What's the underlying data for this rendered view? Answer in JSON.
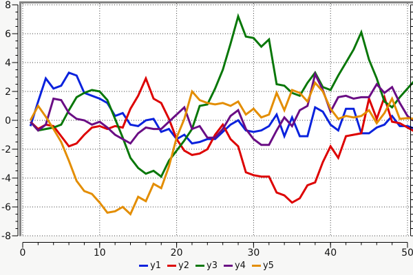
{
  "chart_data": {
    "type": "line",
    "title": "",
    "xlabel": "",
    "ylabel": "",
    "xlim": [
      0,
      50.7
    ],
    "ylim": [
      -8,
      8
    ],
    "grid": "dotted",
    "legend_position": "bottom-center",
    "x_ticks_major": [
      0,
      10,
      20,
      30,
      40,
      50
    ],
    "x_tick_labels": [
      "0",
      "10",
      "20",
      "30",
      "40",
      "50"
    ],
    "x_minor_step": 2,
    "y_ticks_major": [
      8,
      6,
      4,
      2,
      0,
      -2,
      -4,
      -6,
      -8
    ],
    "y_tick_labels": [
      "8",
      "6",
      "4",
      "2",
      "0",
      "-2",
      "-4",
      "-6",
      "-8"
    ],
    "y_minor_step": 0.5,
    "x": [
      1,
      2,
      3,
      4,
      5,
      6,
      7,
      8,
      9,
      10,
      11,
      12,
      13,
      14,
      15,
      16,
      17,
      18,
      19,
      20,
      21,
      22,
      23,
      24,
      25,
      26,
      27,
      28,
      29,
      30,
      31,
      32,
      33,
      34,
      35,
      36,
      37,
      38,
      39,
      40,
      41,
      42,
      43,
      44,
      45,
      46,
      47,
      48,
      49,
      50,
      51
    ],
    "series": [
      {
        "name": "y1",
        "color": "#0a22dd",
        "values": [
          -0.4,
          1.3,
          2.9,
          2.2,
          2.4,
          3.3,
          3.1,
          1.9,
          1.7,
          1.5,
          1.2,
          0.3,
          0.5,
          -0.3,
          -0.4,
          0.0,
          0.1,
          -0.8,
          -0.6,
          -1.3,
          -1.0,
          -1.6,
          -1.5,
          -1.3,
          -1.3,
          -0.8,
          -0.3,
          0.0,
          -0.7,
          -0.8,
          -0.7,
          -0.4,
          0.4,
          -1.1,
          0.2,
          -1.1,
          -1.1,
          0.9,
          0.6,
          -0.3,
          -0.7,
          0.8,
          0.8,
          -0.9,
          -0.9,
          -0.5,
          -0.3,
          0.3,
          -0.4,
          -0.4,
          -0.6
        ]
      },
      {
        "name": "y2",
        "color": "#dd0000",
        "values": [
          -0.1,
          -0.6,
          -0.3,
          -0.4,
          -1.1,
          -1.8,
          -1.6,
          -1.0,
          -0.5,
          -0.4,
          -0.6,
          -0.4,
          -0.5,
          0.8,
          1.7,
          2.9,
          1.5,
          1.2,
          0.1,
          -1.3,
          -2.1,
          -2.4,
          -2.3,
          -2.0,
          -1.0,
          -0.3,
          -1.3,
          -1.8,
          -3.6,
          -3.8,
          -3.9,
          -3.9,
          -5.0,
          -5.2,
          -5.7,
          -5.4,
          -4.5,
          -4.3,
          -2.9,
          -1.8,
          -2.6,
          -1.1,
          -1.0,
          -0.9,
          1.5,
          0.1,
          1.6,
          -0.1,
          -0.2,
          -0.5,
          -0.8
        ]
      },
      {
        "name": "y3",
        "color": "#087708",
        "values": [
          -0.1,
          -0.7,
          -0.6,
          -0.5,
          -0.3,
          0.7,
          1.6,
          1.9,
          2.1,
          2.0,
          1.4,
          0.1,
          -1.2,
          -2.6,
          -3.3,
          -3.7,
          -3.5,
          -3.9,
          -2.8,
          -2.1,
          -1.4,
          -0.6,
          1.0,
          1.1,
          2.2,
          3.5,
          5.3,
          7.2,
          5.8,
          5.7,
          5.1,
          5.6,
          2.5,
          2.4,
          1.9,
          1.7,
          2.6,
          3.3,
          2.3,
          2.1,
          3.1,
          4.0,
          4.9,
          6.1,
          4.2,
          2.9,
          1.3,
          0.9,
          1.6,
          2.2,
          2.8
        ]
      },
      {
        "name": "y4",
        "color": "#6a0d84",
        "values": [
          -0.1,
          -0.7,
          -0.3,
          1.5,
          1.4,
          0.5,
          0.1,
          0.0,
          -0.3,
          -0.1,
          -0.5,
          -1.0,
          -1.3,
          -1.6,
          -0.9,
          -0.5,
          -0.6,
          -0.6,
          -0.1,
          0.4,
          0.9,
          -0.6,
          -0.4,
          -1.2,
          -1.2,
          -0.6,
          0.3,
          0.7,
          -0.6,
          -1.3,
          -1.7,
          -1.7,
          -0.7,
          0.2,
          -0.4,
          0.7,
          1.0,
          3.2,
          2.1,
          0.6,
          1.6,
          1.7,
          1.5,
          1.6,
          1.6,
          2.5,
          1.9,
          2.3,
          1.2,
          0.3,
          -0.1
        ]
      },
      {
        "name": "y5",
        "color": "#e38d00",
        "values": [
          0.0,
          1.0,
          0.25,
          -0.6,
          -1.5,
          -2.8,
          -4.2,
          -4.9,
          -5.1,
          -5.7,
          -6.4,
          -6.3,
          -6.0,
          -6.5,
          -5.3,
          -5.6,
          -4.4,
          -4.7,
          -3.2,
          -1.2,
          0.1,
          2.0,
          1.4,
          1.2,
          1.1,
          1.2,
          1.0,
          1.3,
          0.4,
          0.8,
          0.2,
          0.4,
          1.9,
          0.7,
          2.1,
          1.9,
          1.3,
          2.6,
          2.0,
          0.8,
          0.1,
          0.3,
          0.2,
          0.3,
          0.7,
          -0.2,
          0.5,
          1.5,
          0.1,
          0.15,
          0.1
        ]
      }
    ],
    "colors": {
      "plot_background": "#ffffff",
      "outer_background": "#f7f7f6",
      "frame": "#838383",
      "grid": "#333333",
      "tick": "#000000",
      "tick_label": "#111111"
    }
  },
  "legend": {
    "entries": [
      {
        "label": "y1",
        "color": "#0a22dd"
      },
      {
        "label": "y2",
        "color": "#dd0000"
      },
      {
        "label": "y3",
        "color": "#087708"
      },
      {
        "label": "y4",
        "color": "#6a0d84"
      },
      {
        "label": "y5",
        "color": "#e38d00"
      }
    ]
  }
}
